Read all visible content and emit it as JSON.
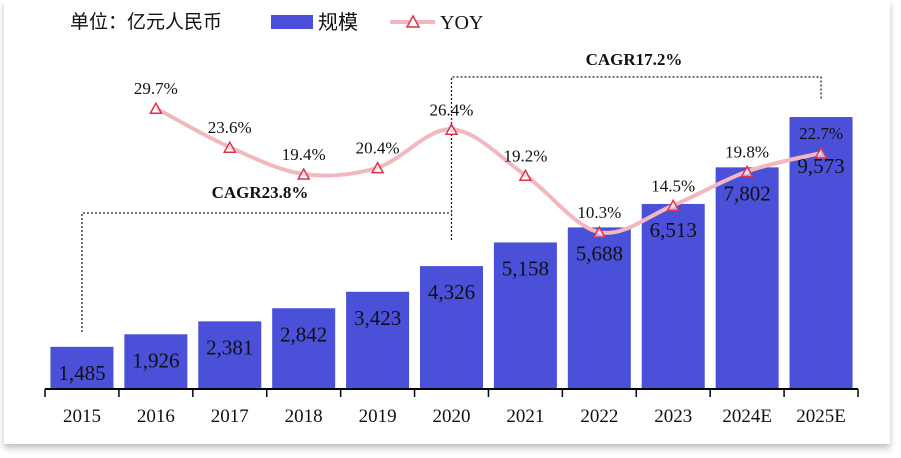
{
  "chart_data": {
    "type": "bar+line",
    "unit_label": "单位：亿元人民币",
    "categories": [
      "2015",
      "2016",
      "2017",
      "2018",
      "2019",
      "2020",
      "2021",
      "2022",
      "2023",
      "2024E",
      "2025E"
    ],
    "series": [
      {
        "name": "规模",
        "type": "bar",
        "color": "#4a50d8",
        "values": [
          1485,
          1926,
          2381,
          2842,
          3423,
          4326,
          5158,
          5688,
          6513,
          7802,
          9573
        ],
        "labels": [
          "1,485",
          "1,926",
          "2,381",
          "2,842",
          "3,423",
          "4,326",
          "5,158",
          "5,688",
          "6,513",
          "7,802",
          "9,573"
        ]
      },
      {
        "name": "YOY",
        "type": "line",
        "color": "#f2b8bf",
        "marker": "triangle",
        "marker_color": "#e0304a",
        "values": [
          null,
          29.7,
          23.6,
          19.4,
          20.4,
          26.4,
          19.2,
          10.3,
          14.5,
          19.8,
          22.7
        ],
        "labels": [
          "",
          "29.7%",
          "23.6%",
          "19.4%",
          "20.4%",
          "26.4%",
          "19.2%",
          "10.3%",
          "14.5%",
          "19.8%",
          "22.7%"
        ]
      }
    ],
    "annotations": [
      {
        "text": "CAGR23.8%",
        "from": "2015",
        "to": "2020"
      },
      {
        "text": "CAGR17.2%",
        "from": "2020",
        "to": "2025E"
      }
    ],
    "grid": false,
    "legend": "top"
  }
}
